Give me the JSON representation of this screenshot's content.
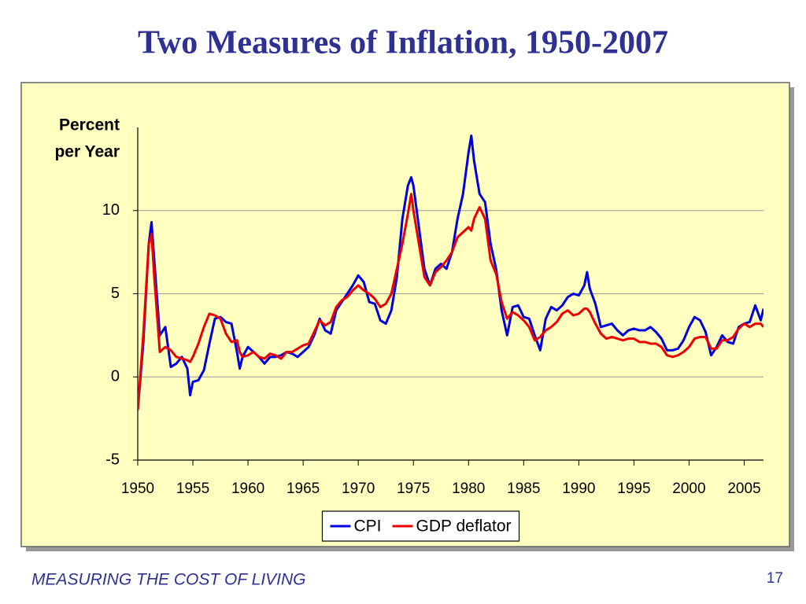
{
  "chart_data": {
    "type": "line",
    "title": "Two Measures of Inflation, 1950-2007",
    "ylabel": [
      "Percent",
      "per Year"
    ],
    "x": [
      1950.0,
      1950.5,
      1951.0,
      1951.25,
      1951.5,
      1952.0,
      1952.5,
      1953.0,
      1953.5,
      1954.0,
      1954.5,
      1954.75,
      1955.0,
      1955.5,
      1956.0,
      1956.5,
      1957.0,
      1957.5,
      1958.0,
      1958.5,
      1959.0,
      1959.25,
      1959.5,
      1960.0,
      1960.5,
      1961.0,
      1961.5,
      1962.0,
      1962.5,
      1963.0,
      1963.5,
      1964.0,
      1964.5,
      1965.0,
      1965.5,
      1966.0,
      1966.5,
      1967.0,
      1967.5,
      1968.0,
      1968.5,
      1969.0,
      1969.5,
      1970.0,
      1970.5,
      1971.0,
      1971.5,
      1972.0,
      1972.5,
      1973.0,
      1973.5,
      1974.0,
      1974.5,
      1974.8,
      1975.0,
      1975.5,
      1976.0,
      1976.5,
      1977.0,
      1977.5,
      1978.0,
      1978.5,
      1979.0,
      1979.5,
      1980.0,
      1980.25,
      1980.5,
      1981.0,
      1981.5,
      1982.0,
      1982.5,
      1983.0,
      1983.5,
      1984.0,
      1984.5,
      1985.0,
      1985.5,
      1986.0,
      1986.5,
      1987.0,
      1987.5,
      1988.0,
      1988.5,
      1989.0,
      1989.5,
      1990.0,
      1990.5,
      1990.75,
      1991.0,
      1991.5,
      1992.0,
      1992.5,
      1993.0,
      1993.5,
      1994.0,
      1994.5,
      1995.0,
      1995.5,
      1996.0,
      1996.5,
      1997.0,
      1997.5,
      1998.0,
      1998.5,
      1999.0,
      1999.5,
      2000.0,
      2000.5,
      2001.0,
      2001.5,
      2002.0,
      2002.5,
      2003.0,
      2003.5,
      2004.0,
      2004.5,
      2005.0,
      2005.5,
      2006.0,
      2006.5,
      2006.75
    ],
    "series": [
      {
        "name": "CPI",
        "color": "#0000e0",
        "values": [
          -2,
          2,
          8,
          9.3,
          7,
          2.5,
          3,
          0.6,
          0.8,
          1.2,
          0.5,
          -1.1,
          -0.3,
          -0.2,
          0.4,
          2,
          3.5,
          3.6,
          3.3,
          3.2,
          1.5,
          0.5,
          1.2,
          1.8,
          1.5,
          1.2,
          0.8,
          1.2,
          1.2,
          1.3,
          1.5,
          1.4,
          1.2,
          1.5,
          1.8,
          2.5,
          3.5,
          2.8,
          2.6,
          4,
          4.5,
          5,
          5.5,
          6.1,
          5.7,
          4.5,
          4.4,
          3.4,
          3.2,
          4,
          6,
          9.5,
          11.5,
          12,
          11.5,
          9,
          6.5,
          5.5,
          6.5,
          6.8,
          6.5,
          7.5,
          9.5,
          11,
          13.5,
          14.5,
          13,
          11,
          10.5,
          8,
          6.5,
          4,
          2.5,
          4.2,
          4.3,
          3.6,
          3.5,
          2.5,
          1.6,
          3.5,
          4.2,
          4,
          4.3,
          4.8,
          5,
          4.9,
          5.5,
          6.3,
          5.3,
          4.4,
          3,
          3.1,
          3.2,
          2.8,
          2.5,
          2.8,
          2.9,
          2.8,
          2.8,
          3,
          2.7,
          2.3,
          1.6,
          1.6,
          1.7,
          2.2,
          3,
          3.6,
          3.4,
          2.7,
          1.3,
          1.8,
          2.5,
          2.1,
          2,
          3,
          3.2,
          3.3,
          4.3,
          3.4,
          4.1
        ]
      },
      {
        "name": "GDP deflator",
        "color": "#ee0000",
        "values": [
          -2,
          2.5,
          8,
          8.6,
          6,
          1.5,
          1.8,
          1.6,
          1.2,
          1.1,
          1.0,
          0.9,
          1.2,
          2,
          3,
          3.8,
          3.7,
          3.5,
          2.6,
          2.1,
          2.2,
          1.5,
          1.2,
          1.3,
          1.5,
          1.2,
          1.1,
          1.4,
          1.3,
          1.1,
          1.5,
          1.5,
          1.7,
          1.9,
          2.0,
          2.7,
          3.4,
          3.1,
          3.3,
          4.2,
          4.6,
          4.8,
          5.2,
          5.5,
          5.2,
          5.0,
          4.7,
          4.2,
          4.4,
          5,
          6.5,
          8,
          9.8,
          11,
          10,
          8,
          6,
          5.5,
          6.3,
          6.6,
          7,
          7.5,
          8.4,
          8.7,
          9,
          8.8,
          9.5,
          10.2,
          9.5,
          7,
          6.2,
          4.5,
          3.5,
          3.9,
          3.7,
          3.4,
          3,
          2.2,
          2.4,
          2.8,
          3,
          3.3,
          3.8,
          4.0,
          3.7,
          3.8,
          4.1,
          4.1,
          3.9,
          3.2,
          2.6,
          2.3,
          2.4,
          2.3,
          2.2,
          2.3,
          2.3,
          2.1,
          2.1,
          2.0,
          2.0,
          1.8,
          1.3,
          1.2,
          1.3,
          1.5,
          1.8,
          2.3,
          2.4,
          2.4,
          1.7,
          1.7,
          2.2,
          2.2,
          2.4,
          2.9,
          3.2,
          3.0,
          3.2,
          3.2,
          3.0
        ]
      }
    ],
    "xlim": [
      1950,
      2006.75
    ],
    "xticks": [
      1950,
      1955,
      1960,
      1965,
      1970,
      1975,
      1980,
      1985,
      1990,
      1995,
      2000,
      2005
    ],
    "ylim": [
      -5,
      15
    ],
    "yticks": [
      -5,
      0,
      5,
      10
    ],
    "grid": true,
    "legend": "bottom"
  },
  "footer": {
    "text": "MEASURING THE COST OF LIVING",
    "page": 17
  }
}
